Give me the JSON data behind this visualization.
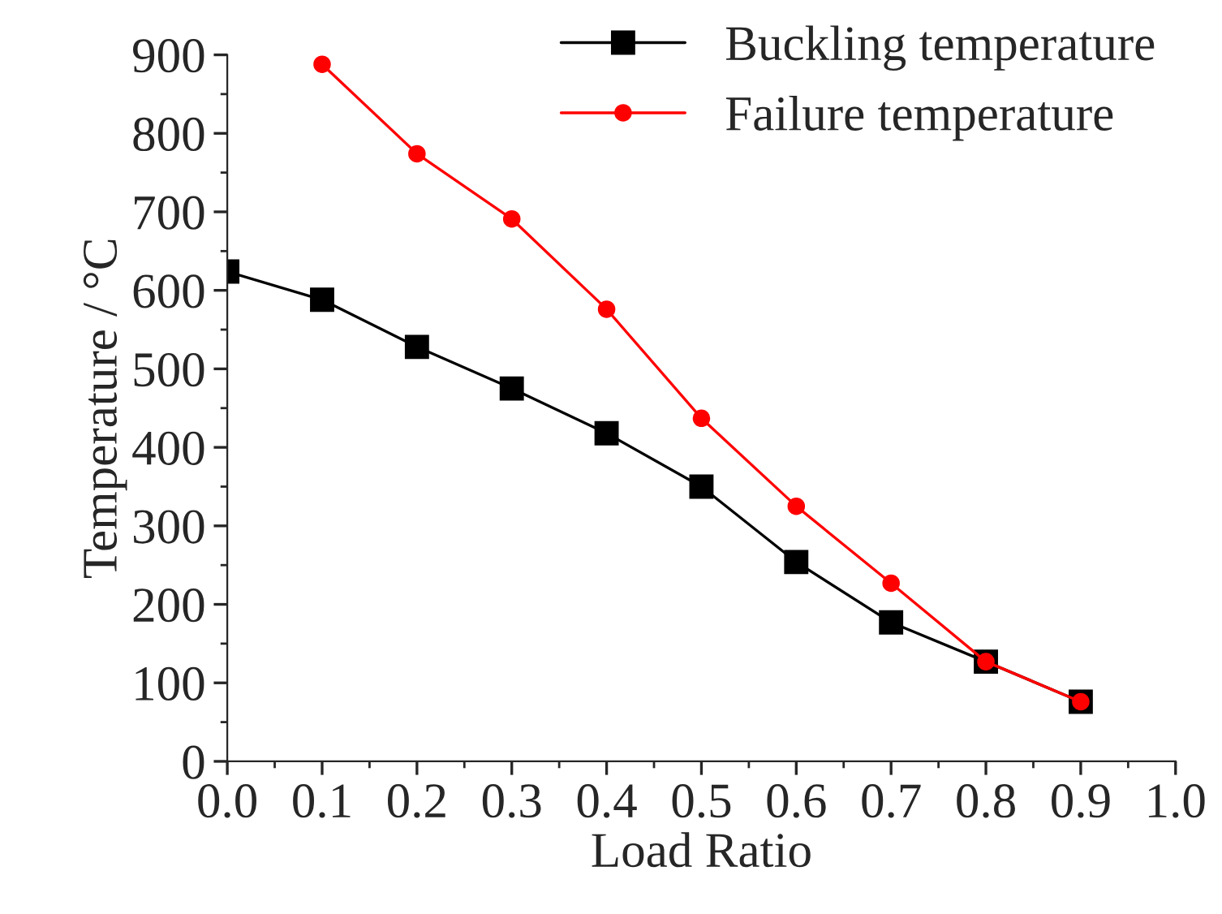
{
  "chart_data": {
    "type": "line",
    "xlabel": "Load Ratio",
    "ylabel": "Temperature / °C",
    "x": [
      0.0,
      0.1,
      0.2,
      0.3,
      0.4,
      0.5,
      0.6,
      0.7,
      0.8,
      0.9
    ],
    "series": [
      {
        "name": "Buckling temperature",
        "color": "#000000",
        "marker": "square",
        "values": [
          624,
          588,
          528,
          475,
          418,
          350,
          254,
          177,
          127,
          76
        ]
      },
      {
        "name": "Failure temperature",
        "color": "#ff0000",
        "marker": "circle",
        "x": [
          0.1,
          0.2,
          0.3,
          0.4,
          0.5,
          0.6,
          0.7,
          0.8,
          0.9
        ],
        "values": [
          888,
          774,
          691,
          576,
          437,
          325,
          227,
          127,
          76
        ]
      }
    ],
    "xlim": [
      0.0,
      1.0
    ],
    "xticks": [
      {
        "value": 0.0,
        "label": "0.0"
      },
      {
        "value": 0.1,
        "label": "0.1"
      },
      {
        "value": 0.2,
        "label": "0.2"
      },
      {
        "value": 0.3,
        "label": "0.3"
      },
      {
        "value": 0.4,
        "label": "0.4"
      },
      {
        "value": 0.5,
        "label": "0.5"
      },
      {
        "value": 0.6,
        "label": "0.6"
      },
      {
        "value": 0.7,
        "label": "0.7"
      },
      {
        "value": 0.8,
        "label": "0.8"
      },
      {
        "value": 0.9,
        "label": "0.9"
      },
      {
        "value": 1.0,
        "label": "1.0"
      }
    ],
    "ylim": [
      0,
      900
    ],
    "yticks": [
      0,
      100,
      200,
      300,
      400,
      500,
      600,
      700,
      800,
      900
    ],
    "grid": false,
    "legend": "top right",
    "line_style": "solid"
  }
}
